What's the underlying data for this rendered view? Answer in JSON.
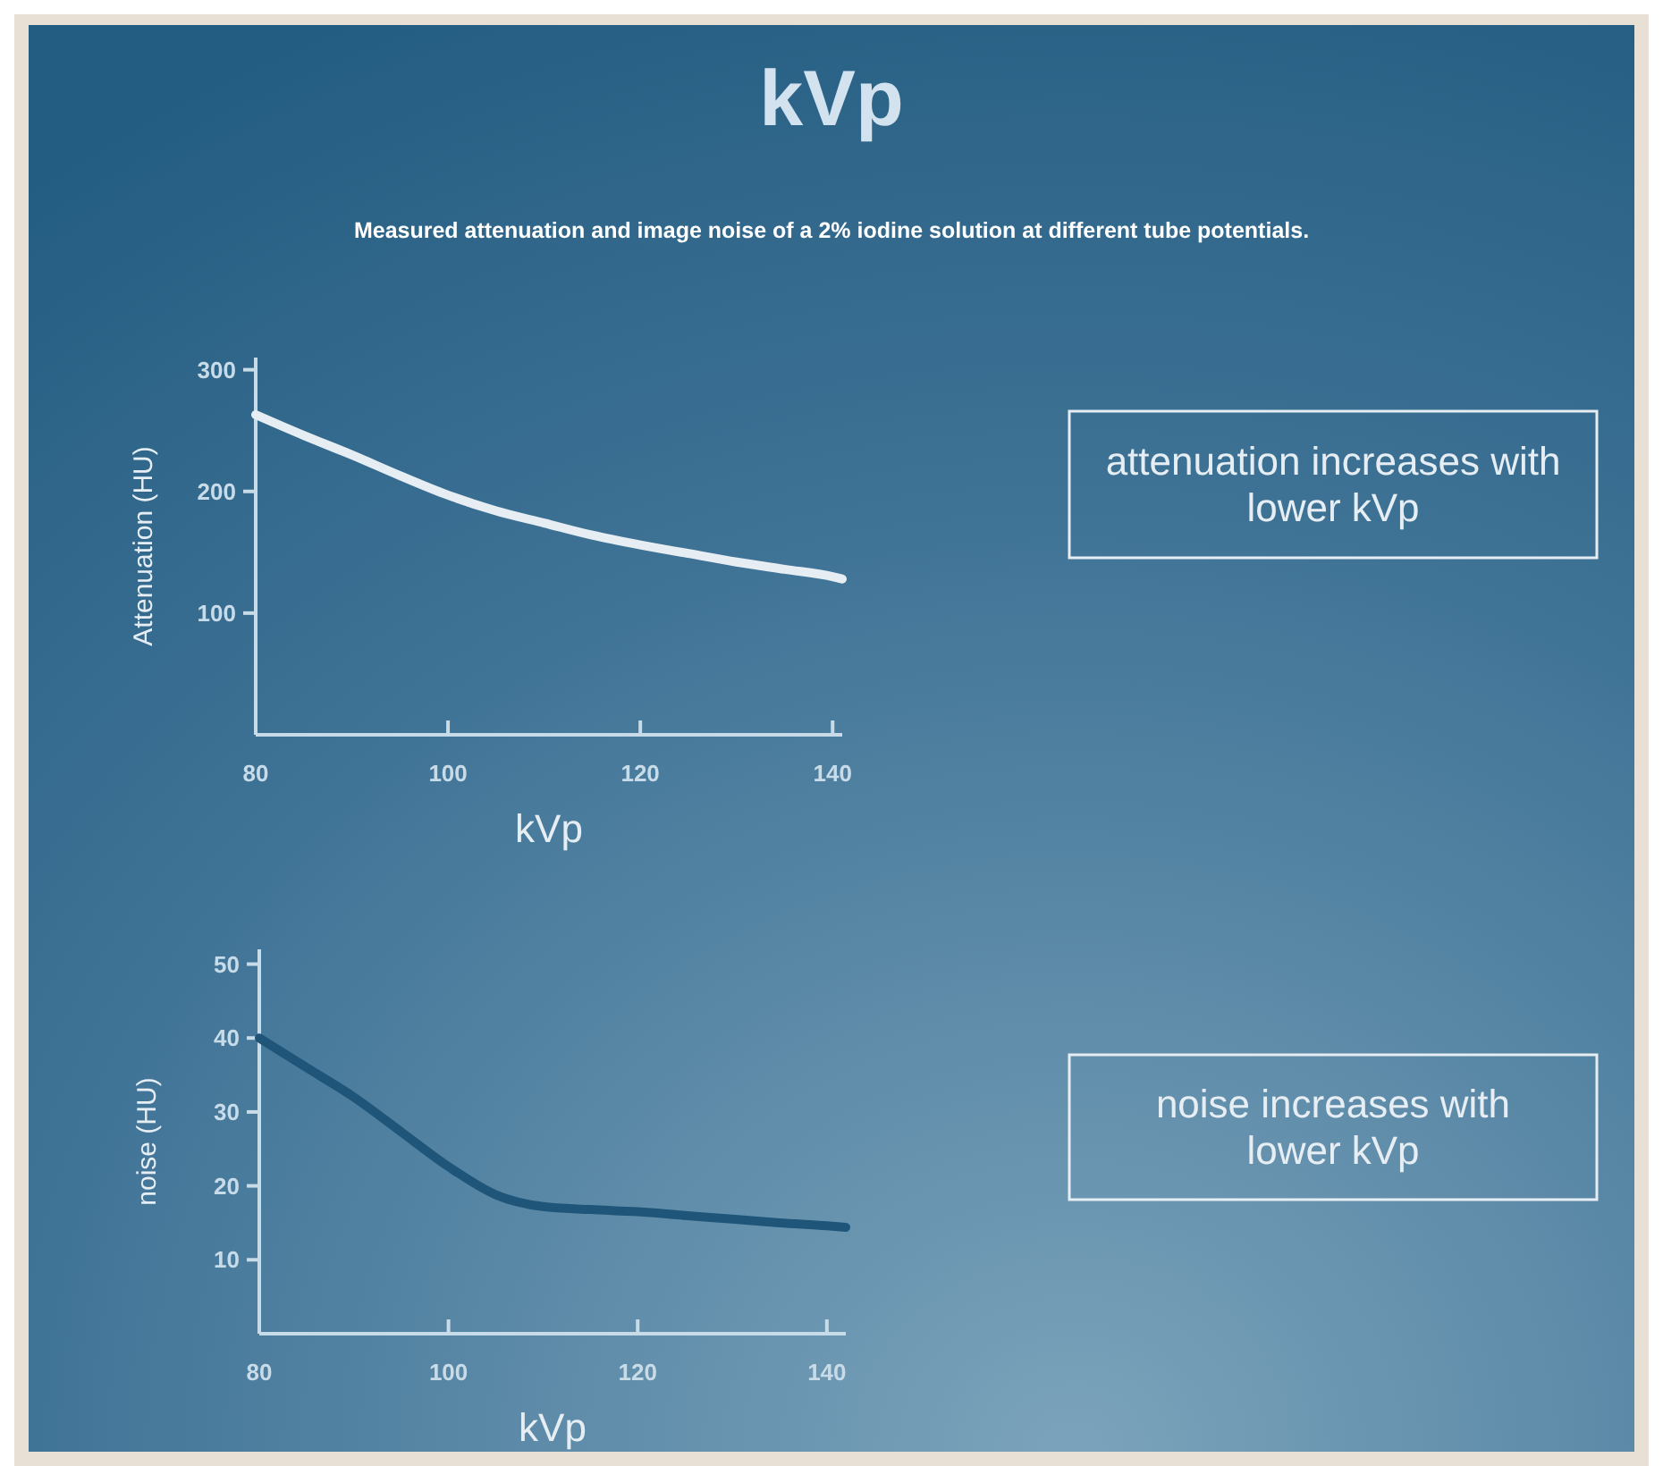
{
  "chart_data": [
    {
      "type": "line",
      "title": "kVp",
      "subtitle": "Measured attenuation and image noise of a 2% iodine solution at different tube potentials.",
      "xlabel": "kVp",
      "ylabel": "Attenuation (HU)",
      "x": [
        80,
        85,
        90,
        95,
        100,
        105,
        110,
        115,
        120,
        125,
        130,
        135,
        140,
        141
      ],
      "series": [
        {
          "color": "#e6eef4",
          "values": [
            263,
            246,
            230,
            213,
            197,
            184,
            174,
            164,
            156,
            149,
            142,
            136,
            130,
            128
          ]
        }
      ],
      "xlim": [
        80,
        141
      ],
      "ylim": [
        0,
        310
      ],
      "xticks": [
        80,
        100,
        120,
        140
      ],
      "yticks": [
        100,
        200,
        300
      ],
      "grid": false,
      "marker": "none",
      "line_style": "solid",
      "annotations": [
        "attenuation increases with\nlower kVp"
      ]
    },
    {
      "type": "line",
      "xlabel": "kVp",
      "ylabel": "noise (HU)",
      "x": [
        80,
        85,
        90,
        95,
        100,
        105,
        110,
        115,
        120,
        125,
        130,
        135,
        140,
        142
      ],
      "series": [
        {
          "color": "#1e5578",
          "values": [
            40,
            36,
            32,
            27.3,
            22.6,
            18.8,
            17.2,
            16.8,
            16.5,
            16,
            15.5,
            15,
            14.6,
            14.4
          ]
        }
      ],
      "xlim": [
        80,
        142
      ],
      "ylim": [
        0,
        52
      ],
      "xticks": [
        80,
        100,
        120,
        140
      ],
      "yticks": [
        10,
        20,
        30,
        40,
        50
      ],
      "grid": false,
      "marker": "none",
      "line_style": "solid",
      "annotations": [
        "noise increases with\nlower kVp"
      ]
    }
  ]
}
